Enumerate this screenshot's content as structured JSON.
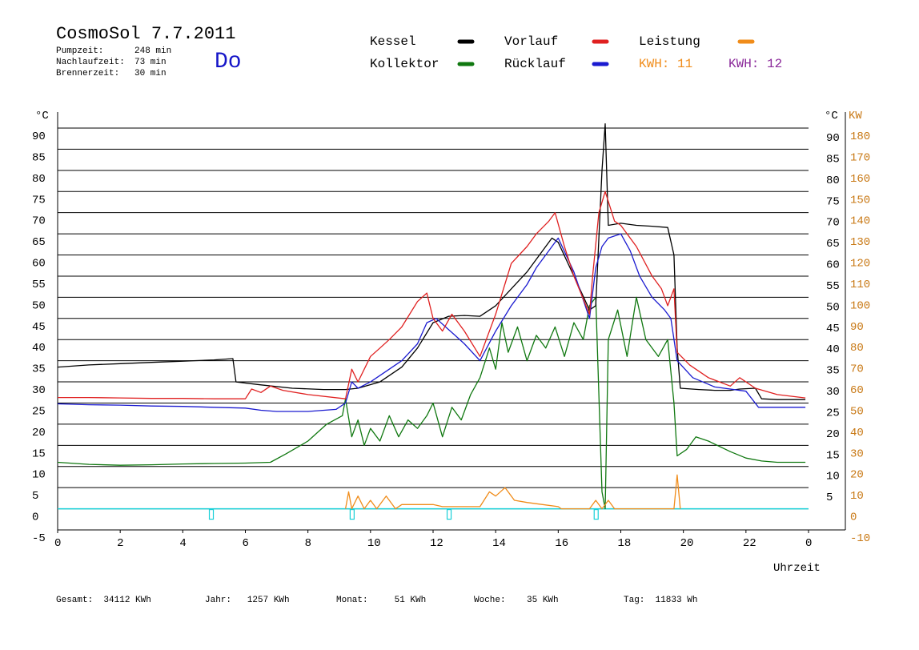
{
  "header": {
    "title": "CosmoSol 7.7.2011",
    "day": "Do",
    "stats": [
      {
        "label": "Pumpzeit:",
        "value": "248 min"
      },
      {
        "label": "Nachlaufzeit:",
        "value": "73 min"
      },
      {
        "label": "Brennerzeit:",
        "value": "30 min"
      }
    ]
  },
  "legend": {
    "items": [
      {
        "label": "Kessel",
        "color": "#000000"
      },
      {
        "label": "Vorlauf",
        "color": "#e02020"
      },
      {
        "label": "Leistung",
        "color": "#f08c1a"
      },
      {
        "label": "Kollektor",
        "color": "#107810"
      },
      {
        "label": "Rücklauf",
        "color": "#1a1ad0"
      }
    ],
    "kwh": [
      {
        "label": "KWH:",
        "value": "11",
        "color": "#f08c1a"
      },
      {
        "label": "KWH:",
        "value": "12",
        "color": "#8b2a9a"
      }
    ]
  },
  "footer": [
    {
      "label": "Gesamt:",
      "value": "34112 KWh"
    },
    {
      "label": "Jahr:",
      "value": "1257 KWh"
    },
    {
      "label": "Monat:",
      "value": "51 KWh"
    },
    {
      "label": "Woche:",
      "value": "35 KWh"
    },
    {
      "label": "Tag:",
      "value": "11833 Wh"
    }
  ],
  "chart_data": {
    "type": "line",
    "xlabel": "Uhrzeit",
    "ylabel_left": "°C",
    "ylabel_right_temp": "°C",
    "ylabel_right_power": "KW",
    "xlim": [
      0,
      24
    ],
    "ylim": [
      -5,
      90
    ],
    "y2lim": [
      -10,
      180
    ],
    "x_ticks": [
      "0",
      "2",
      "4",
      "6",
      "8",
      "10",
      "12",
      "14",
      "16",
      "18",
      "20",
      "22",
      "0"
    ],
    "y_ticks": [
      -5,
      0,
      5,
      10,
      15,
      20,
      25,
      30,
      35,
      40,
      45,
      50,
      55,
      60,
      65,
      70,
      75,
      80,
      85,
      90
    ],
    "y2_ticks": [
      -10,
      0,
      10,
      20,
      30,
      40,
      50,
      60,
      70,
      80,
      90,
      100,
      110,
      120,
      130,
      140,
      150,
      160,
      170,
      180
    ],
    "grid": "horizontal",
    "series": [
      {
        "name": "Kessel",
        "color": "#000000",
        "points": [
          [
            0,
            33.5
          ],
          [
            1,
            34
          ],
          [
            2,
            34.3
          ],
          [
            3,
            34.6
          ],
          [
            4,
            34.9
          ],
          [
            5,
            35.2
          ],
          [
            5.6,
            35.5
          ],
          [
            5.7,
            30
          ],
          [
            6.5,
            29.3
          ],
          [
            7.5,
            28.5
          ],
          [
            8.5,
            28.2
          ],
          [
            9.2,
            28.2
          ],
          [
            9.6,
            28.5
          ],
          [
            10.3,
            30
          ],
          [
            11,
            33.5
          ],
          [
            11.5,
            38
          ],
          [
            12,
            44
          ],
          [
            12.5,
            45.5
          ],
          [
            13,
            45.7
          ],
          [
            13.5,
            45.5
          ],
          [
            14,
            48
          ],
          [
            14.5,
            52
          ],
          [
            15,
            56
          ],
          [
            15.5,
            61
          ],
          [
            15.8,
            64
          ],
          [
            16,
            63
          ],
          [
            16.5,
            55
          ],
          [
            17,
            47
          ],
          [
            17.2,
            48
          ],
          [
            17.4,
            80
          ],
          [
            17.5,
            91
          ],
          [
            17.6,
            67
          ],
          [
            18,
            67.5
          ],
          [
            18.5,
            67
          ],
          [
            19,
            66.8
          ],
          [
            19.5,
            66.5
          ],
          [
            19.7,
            60
          ],
          [
            19.8,
            38
          ],
          [
            19.9,
            28.5
          ],
          [
            20.5,
            28.2
          ],
          [
            21,
            28
          ],
          [
            21.5,
            28
          ],
          [
            21.8,
            28.3
          ],
          [
            22.3,
            28.5
          ],
          [
            22.5,
            26
          ],
          [
            23,
            25.8
          ],
          [
            23.9,
            25.8
          ]
        ]
      },
      {
        "name": "Vorlauf",
        "color": "#e02020",
        "points": [
          [
            0,
            26.3
          ],
          [
            1,
            26.3
          ],
          [
            2,
            26.2
          ],
          [
            3,
            26.1
          ],
          [
            4,
            26.1
          ],
          [
            5,
            26
          ],
          [
            6,
            26
          ],
          [
            6.2,
            28.3
          ],
          [
            6.5,
            27.5
          ],
          [
            6.8,
            29
          ],
          [
            7.2,
            28
          ],
          [
            8,
            27
          ],
          [
            9.2,
            26
          ],
          [
            9.4,
            33
          ],
          [
            9.6,
            30
          ],
          [
            10,
            36
          ],
          [
            10.3,
            38
          ],
          [
            10.6,
            40
          ],
          [
            11,
            43
          ],
          [
            11.5,
            49
          ],
          [
            11.8,
            51
          ],
          [
            12,
            45
          ],
          [
            12.3,
            42
          ],
          [
            12.6,
            46
          ],
          [
            13,
            42
          ],
          [
            13.5,
            36
          ],
          [
            14,
            46
          ],
          [
            14.5,
            58
          ],
          [
            15,
            62
          ],
          [
            15.3,
            65
          ],
          [
            15.7,
            68
          ],
          [
            15.9,
            70
          ],
          [
            16.2,
            62
          ],
          [
            16.5,
            55
          ],
          [
            17,
            46
          ],
          [
            17.1,
            55
          ],
          [
            17.3,
            70
          ],
          [
            17.5,
            75
          ],
          [
            17.8,
            68
          ],
          [
            18,
            67
          ],
          [
            18.5,
            62
          ],
          [
            19,
            55
          ],
          [
            19.3,
            52
          ],
          [
            19.5,
            48
          ],
          [
            19.7,
            52
          ],
          [
            19.8,
            37
          ],
          [
            20.2,
            34
          ],
          [
            20.8,
            31
          ],
          [
            21.5,
            29
          ],
          [
            21.8,
            31
          ],
          [
            22.3,
            28.5
          ],
          [
            23,
            27
          ],
          [
            23.9,
            26.2
          ]
        ]
      },
      {
        "name": "Rücklauf",
        "color": "#1a1ad0",
        "points": [
          [
            0,
            24.8
          ],
          [
            1,
            24.6
          ],
          [
            2,
            24.5
          ],
          [
            3,
            24.3
          ],
          [
            4,
            24.2
          ],
          [
            5,
            24
          ],
          [
            6,
            23.8
          ],
          [
            6.5,
            23.3
          ],
          [
            7,
            23
          ],
          [
            8,
            23
          ],
          [
            8.9,
            23.5
          ],
          [
            9.2,
            25
          ],
          [
            9.4,
            30
          ],
          [
            9.6,
            28.5
          ],
          [
            10,
            30
          ],
          [
            10.5,
            32.5
          ],
          [
            11,
            35
          ],
          [
            11.5,
            39
          ],
          [
            11.8,
            44
          ],
          [
            12.1,
            45
          ],
          [
            12.4,
            43
          ],
          [
            12.7,
            41
          ],
          [
            13,
            39
          ],
          [
            13.5,
            35
          ],
          [
            14,
            42
          ],
          [
            14.5,
            48
          ],
          [
            15,
            53
          ],
          [
            15.3,
            57
          ],
          [
            15.7,
            61
          ],
          [
            16,
            64
          ],
          [
            16.5,
            56
          ],
          [
            17,
            45
          ],
          [
            17.2,
            57
          ],
          [
            17.4,
            62
          ],
          [
            17.6,
            64
          ],
          [
            18,
            65
          ],
          [
            18.3,
            61
          ],
          [
            18.6,
            55
          ],
          [
            19,
            50
          ],
          [
            19.4,
            47
          ],
          [
            19.6,
            45
          ],
          [
            19.8,
            35
          ],
          [
            20.3,
            31
          ],
          [
            21,
            28.8
          ],
          [
            22,
            27.8
          ],
          [
            22.4,
            24
          ],
          [
            23,
            24
          ],
          [
            23.9,
            24
          ]
        ]
      },
      {
        "name": "Kollektor",
        "color": "#107810",
        "points": [
          [
            0,
            11
          ],
          [
            1,
            10.5
          ],
          [
            2,
            10.3
          ],
          [
            3,
            10.4
          ],
          [
            4,
            10.6
          ],
          [
            5,
            10.7
          ],
          [
            6,
            10.8
          ],
          [
            6.8,
            11
          ],
          [
            7.3,
            13
          ],
          [
            8,
            16
          ],
          [
            8.6,
            20
          ],
          [
            9.1,
            22
          ],
          [
            9.2,
            26
          ],
          [
            9.4,
            17
          ],
          [
            9.6,
            21
          ],
          [
            9.8,
            15
          ],
          [
            10,
            19
          ],
          [
            10.3,
            16
          ],
          [
            10.6,
            22
          ],
          [
            10.9,
            17
          ],
          [
            11.2,
            21
          ],
          [
            11.5,
            19
          ],
          [
            11.8,
            22
          ],
          [
            12,
            25
          ],
          [
            12.3,
            17
          ],
          [
            12.6,
            24
          ],
          [
            12.9,
            21
          ],
          [
            13.2,
            27
          ],
          [
            13.5,
            31
          ],
          [
            13.8,
            38
          ],
          [
            14,
            33
          ],
          [
            14.2,
            44
          ],
          [
            14.4,
            37
          ],
          [
            14.7,
            43
          ],
          [
            15,
            35
          ],
          [
            15.3,
            41
          ],
          [
            15.6,
            38
          ],
          [
            15.9,
            43
          ],
          [
            16.2,
            36
          ],
          [
            16.5,
            44
          ],
          [
            16.8,
            40
          ],
          [
            17,
            48
          ],
          [
            17.2,
            50
          ],
          [
            17.4,
            4
          ],
          [
            17.5,
            0
          ],
          [
            17.6,
            40
          ],
          [
            17.9,
            47
          ],
          [
            18.2,
            36
          ],
          [
            18.5,
            50
          ],
          [
            18.8,
            40
          ],
          [
            19.2,
            36
          ],
          [
            19.5,
            40
          ],
          [
            19.7,
            25
          ],
          [
            19.8,
            12.5
          ],
          [
            20.1,
            14
          ],
          [
            20.4,
            17
          ],
          [
            20.8,
            16
          ],
          [
            21.5,
            13.5
          ],
          [
            22,
            12
          ],
          [
            22.5,
            11.3
          ],
          [
            23,
            11
          ],
          [
            23.9,
            11
          ]
        ]
      },
      {
        "name": "Leistung",
        "color": "#f08c1a",
        "points": [
          [
            9.2,
            0
          ],
          [
            9.3,
            4
          ],
          [
            9.4,
            0
          ],
          [
            9.6,
            3
          ],
          [
            9.8,
            0
          ],
          [
            10,
            2
          ],
          [
            10.2,
            0
          ],
          [
            10.5,
            3
          ],
          [
            10.8,
            0
          ],
          [
            11,
            1
          ],
          [
            12,
            1
          ],
          [
            12.3,
            0.5
          ],
          [
            13.5,
            0.5
          ],
          [
            13.8,
            4
          ],
          [
            14,
            3
          ],
          [
            14.3,
            5
          ],
          [
            14.6,
            2
          ],
          [
            15,
            1.5
          ],
          [
            15.5,
            1
          ],
          [
            16,
            0.5
          ],
          [
            16.1,
            0
          ],
          [
            17,
            0
          ],
          [
            17.2,
            2
          ],
          [
            17.4,
            0
          ],
          [
            17.6,
            2
          ],
          [
            17.8,
            0
          ],
          [
            19.7,
            0
          ],
          [
            19.8,
            8
          ],
          [
            19.9,
            0
          ]
        ]
      }
    ]
  }
}
